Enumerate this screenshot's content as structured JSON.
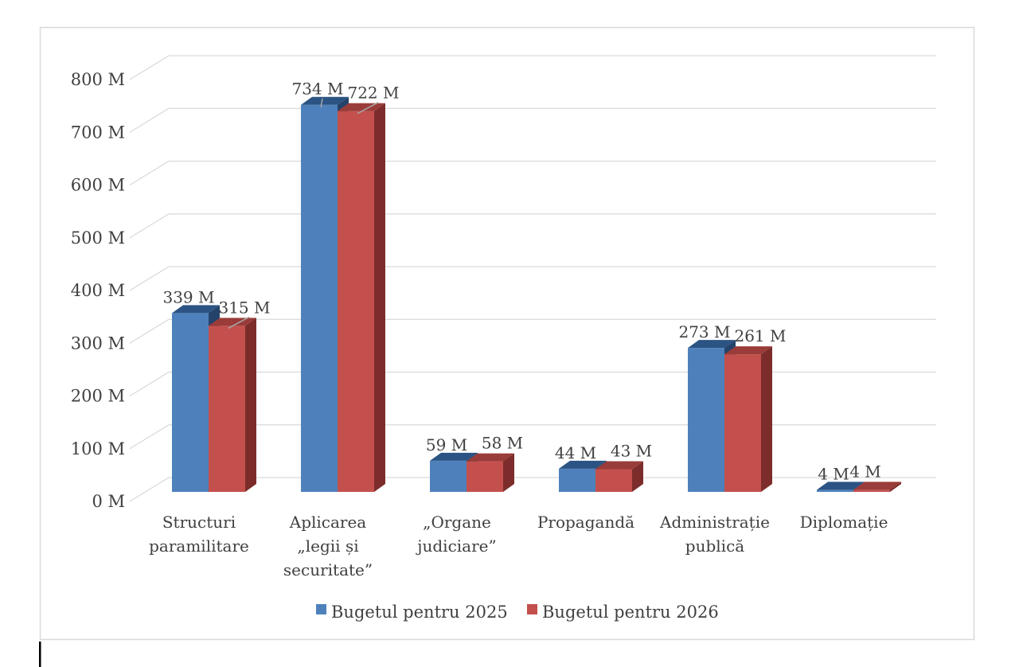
{
  "page": {
    "background_color": "#ffffff",
    "text_color": "#404040"
  },
  "chart_frame": {
    "border_color": "#d9d9d9",
    "fill_color": "#ffffff"
  },
  "text_cursor": {
    "present": true,
    "color": "#000000"
  },
  "chart_data": {
    "type": "bar",
    "variant": "3d-clustered-column",
    "title": "",
    "categories": [
      "Structuri paramilitare",
      "Aplicarea „legii și securitate”",
      "„Organe judiciare”",
      "Propagandă",
      "Administrație publică",
      "Diplomație"
    ],
    "categories_wrapped": [
      [
        "Structuri",
        "paramilitare"
      ],
      [
        "Aplicarea",
        "„legii și",
        "securitate”"
      ],
      [
        "„Organe",
        "judiciare”"
      ],
      [
        "Propagandă"
      ],
      [
        "Administrație",
        "publică"
      ],
      [
        "Diplomație"
      ]
    ],
    "series": [
      {
        "name": "Bugetul pentru 2025",
        "color": "#4E81BC",
        "color_top": "#2B5383",
        "color_side": "#24436B",
        "values": [
          339,
          734,
          59,
          44,
          273,
          4
        ],
        "data_labels": [
          "339 M",
          "734 M",
          "59 M",
          "44 M",
          "273 M",
          "4 M"
        ]
      },
      {
        "name": "Bugetul pentru 2026",
        "color": "#C4504D",
        "color_top": "#9A3C39",
        "color_side": "#7C2D2B",
        "values": [
          315,
          722,
          58,
          43,
          261,
          4
        ],
        "data_labels": [
          "315 M",
          "722 M",
          "58 M",
          "43 M",
          "261 M",
          "4 M"
        ]
      }
    ],
    "y_axis": {
      "ticks": [
        0,
        100,
        200,
        300,
        400,
        500,
        600,
        700,
        800
      ],
      "tick_labels": [
        "0 M",
        "100 M",
        "200 M",
        "300 M",
        "400 M",
        "500 M",
        "600 M",
        "700 M",
        "800 M"
      ],
      "unit": "M"
    },
    "ylim": [
      0,
      800
    ],
    "grid": true,
    "gridline_color": "#d9d9d9",
    "leader_line_color": "#a6a6a6",
    "leader_lines": [
      {
        "category": 0,
        "series": 1
      },
      {
        "category": 1,
        "series": 0
      },
      {
        "category": 1,
        "series": 1
      }
    ],
    "legend": {
      "position": "bottom",
      "entries": [
        "Bugetul pentru 2025",
        "Bugetul pentru 2026"
      ],
      "colors": [
        "#4E81BC",
        "#C4504D"
      ]
    }
  }
}
